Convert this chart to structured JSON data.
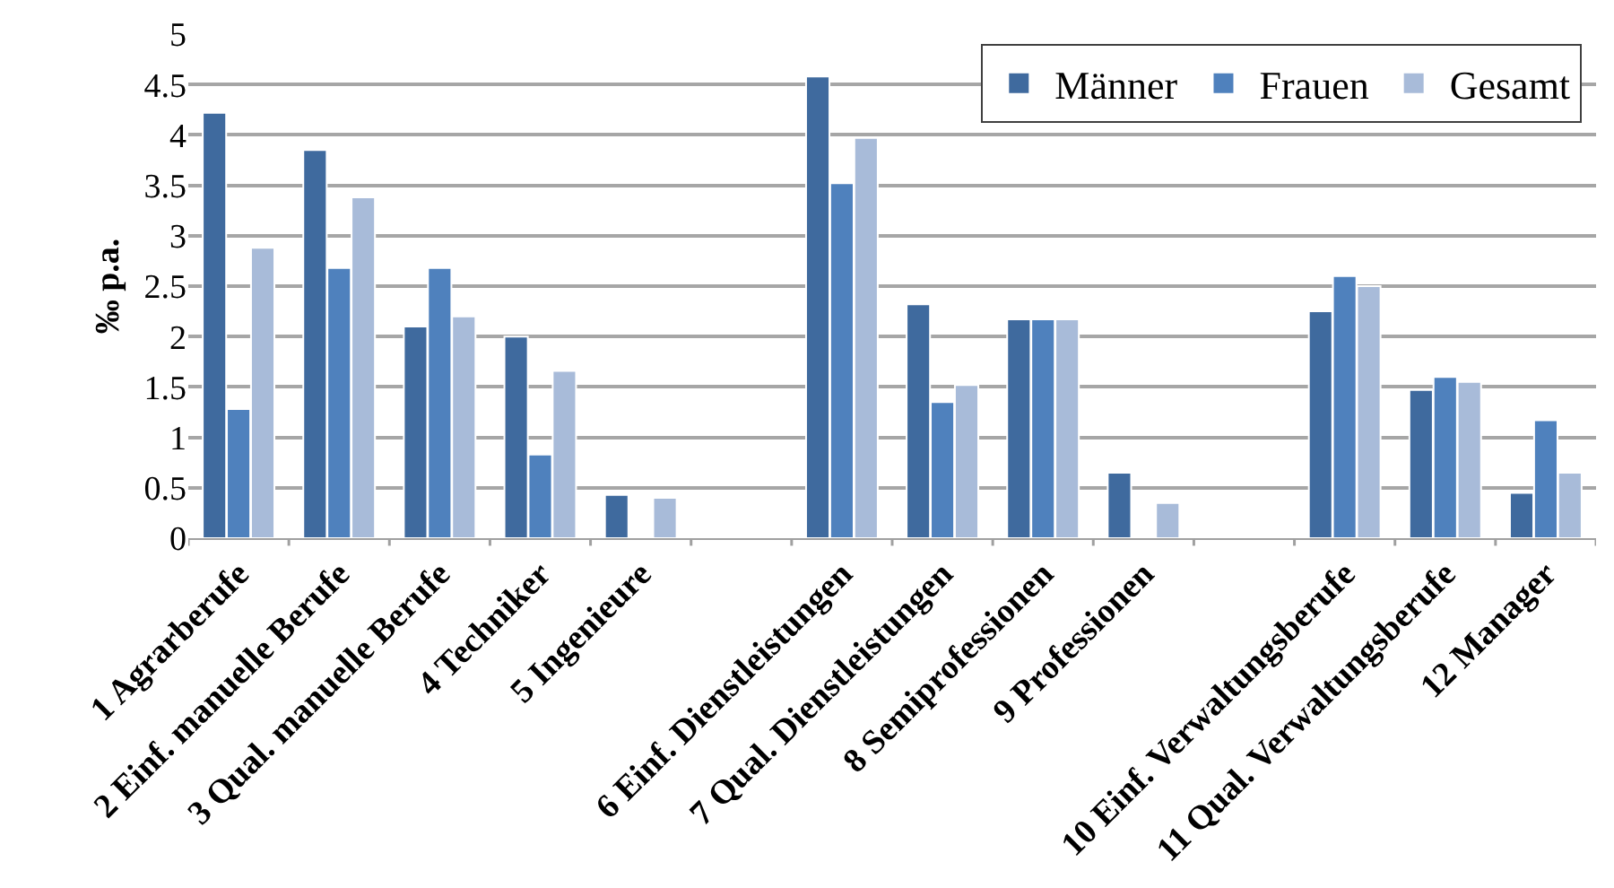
{
  "chart_data": {
    "type": "bar",
    "ylabel": "‰ p.a.",
    "categories": [
      "1 Agrarberufe",
      "2 Einf. manuelle Berufe",
      "3 Qual. manuelle Berufe",
      "4 Techniker",
      "5 Ingenieure",
      null,
      "6 Einf. Dienstleistungen",
      "7 Qual. Dienstleistungen",
      "8 Semiprofessionen",
      "9 Professionen",
      null,
      "10 Einf. Verwaltungsberufe",
      "11 Qual. Verwaltungsberufe",
      "12 Manager"
    ],
    "series": [
      {
        "name": "Männer",
        "color": "#3f6a9e",
        "values": [
          4.22,
          3.85,
          2.1,
          2.0,
          0.43,
          null,
          4.58,
          2.32,
          2.17,
          0.65,
          null,
          2.25,
          1.47,
          0.45
        ]
      },
      {
        "name": "Frauen",
        "color": "#4f81bd",
        "values": [
          1.28,
          2.68,
          2.68,
          0.83,
          null,
          null,
          3.52,
          1.35,
          2.17,
          null,
          null,
          2.6,
          1.6,
          1.17
        ]
      },
      {
        "name": "Gesamt",
        "color": "#a8bbd9",
        "values": [
          2.88,
          3.38,
          2.2,
          1.66,
          0.4,
          null,
          3.97,
          1.52,
          2.17,
          0.35,
          null,
          2.5,
          1.55,
          0.65
        ]
      }
    ],
    "ylim": [
      0,
      5
    ],
    "yticks": [
      0,
      0.5,
      1,
      1.5,
      2,
      2.5,
      3,
      3.5,
      4,
      4.5,
      5
    ],
    "grid": "y",
    "legend": "top right"
  }
}
